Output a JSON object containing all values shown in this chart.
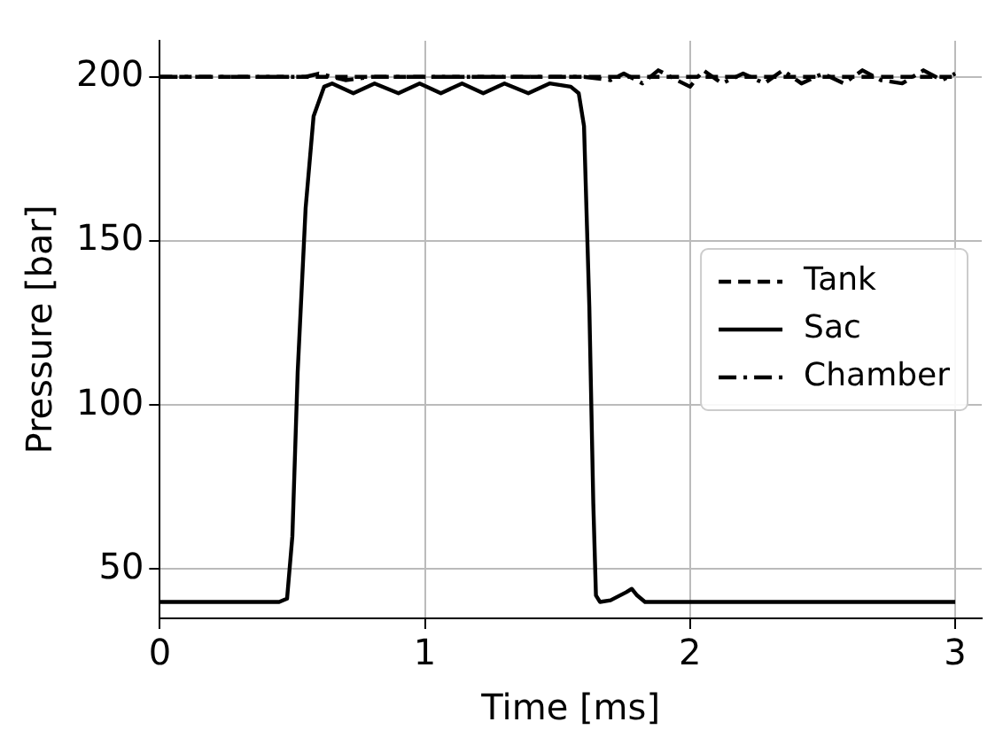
{
  "chart_data": {
    "type": "line",
    "xlabel": "Time [ms]",
    "ylabel": "Pressure [bar]",
    "xlim": [
      0,
      3.1
    ],
    "ylim": [
      35,
      211
    ],
    "xticks": [
      0,
      1,
      2,
      3
    ],
    "yticks": [
      50,
      100,
      150,
      200
    ],
    "grid": true,
    "legend": "right",
    "marker": "none",
    "series": [
      {
        "name": "Tank",
        "color": "#000000",
        "line_style": "dashed",
        "x": [
          0,
          3
        ],
        "values": [
          200,
          200
        ]
      },
      {
        "name": "Sac",
        "color": "#000000",
        "line_style": "solid",
        "x": [
          0,
          0.45,
          0.48,
          0.5,
          0.52,
          0.55,
          0.58,
          0.62,
          0.65,
          0.73,
          0.81,
          0.9,
          0.98,
          1.06,
          1.14,
          1.22,
          1.3,
          1.39,
          1.47,
          1.55,
          1.58,
          1.6,
          1.62,
          1.635,
          1.645,
          1.66,
          1.7,
          1.76,
          1.78,
          1.8,
          1.83,
          3
        ],
        "values": [
          40,
          40,
          41,
          60,
          110,
          160,
          188,
          197,
          198,
          195,
          198,
          195,
          198,
          195,
          198,
          195,
          198,
          195,
          198,
          197,
          195,
          185,
          130,
          70,
          42,
          40,
          40.5,
          43,
          44,
          42,
          40,
          40
        ]
      },
      {
        "name": "Chamber",
        "color": "#000000",
        "line_style": "dashdot",
        "x": [
          0,
          0.55,
          0.6,
          0.7,
          0.8,
          1.6,
          1.7,
          1.75,
          1.82,
          1.88,
          1.95,
          2.0,
          2.05,
          2.12,
          2.2,
          2.28,
          2.35,
          2.42,
          2.5,
          2.58,
          2.65,
          2.72,
          2.8,
          2.88,
          2.95,
          3.0
        ],
        "values": [
          200,
          200,
          201,
          199,
          200,
          200,
          199,
          201,
          198,
          202,
          199,
          197,
          202,
          198,
          201,
          198,
          202,
          198,
          201,
          198,
          202,
          199,
          198,
          202,
          199,
          201
        ]
      }
    ]
  }
}
